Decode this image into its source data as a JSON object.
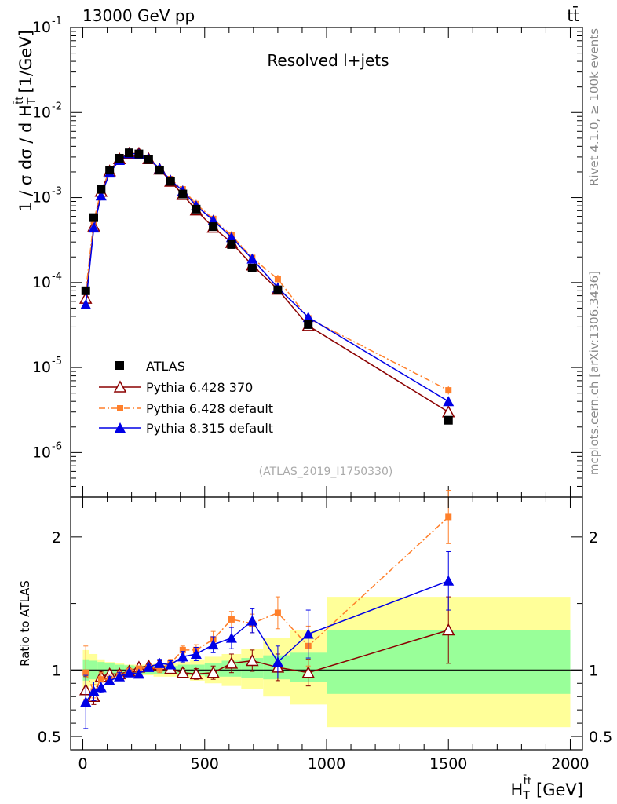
{
  "header": {
    "energy_label": "13000 GeV pp",
    "process_label": "tt̄"
  },
  "side_labels": {
    "rivet": "Rivet 4.1.0, ≥ 100k events",
    "mcplots": "mcplots.cern.ch [arXiv:1306.3436]"
  },
  "colors": {
    "atlas": "#000000",
    "py6_370": "#8b0000",
    "py6_default": "#ff7f2a",
    "py8": "#0000e6",
    "band_inner": "#99ff99",
    "band_outer": "#ffff99"
  },
  "chart_data": [
    {
      "type": "scatter",
      "title": "Resolved l+jets",
      "analysis_tag": "(ATLAS_2019_I1750330)",
      "ylabel": "1 / σ dσ / d H",
      "ylabel_sup": "t̄t",
      "ylabel_sub": "T",
      "ylabel_unit": "[1/GeV]",
      "yscale": "log",
      "ylim": [
        3e-07,
        0.1
      ],
      "xlim": [
        -50,
        2050
      ],
      "y_tick_labels": [
        "10",
        "10",
        "10",
        "10",
        "10",
        "10"
      ],
      "y_tick_exponents": [
        "-6",
        "-5",
        "-4",
        "-3",
        "-2",
        "-1"
      ],
      "y_tick_values": [
        1e-06,
        1e-05,
        0.0001,
        0.001,
        0.01,
        0.1
      ],
      "x": [
        12,
        45,
        75,
        110,
        150,
        190,
        230,
        270,
        315,
        360,
        410,
        465,
        535,
        610,
        695,
        800,
        925,
        1500
      ],
      "series": [
        {
          "name": "ATLAS",
          "key": "atlas",
          "marker": "square",
          "values": [
            8e-05,
            0.00058,
            0.00125,
            0.0021,
            0.0029,
            0.00335,
            0.00325,
            0.0028,
            0.0021,
            0.00155,
            0.0011,
            0.00073,
            0.000455,
            0.00028,
            0.000148,
            8.2e-05,
            3.2e-05,
            2.4e-06
          ]
        },
        {
          "name": "Pythia 6.428 370",
          "key": "py6_370",
          "marker": "triangle-open",
          "dash": "",
          "values": [
            6.5e-05,
            0.00046,
            0.00118,
            0.00205,
            0.00285,
            0.0033,
            0.0033,
            0.00285,
            0.00215,
            0.00155,
            0.00108,
            0.00071,
            0.000445,
            0.000295,
            0.00016,
            8.3e-05,
            3.1e-05,
            3e-06
          ]
        },
        {
          "name": "Pythia 6.428 default",
          "key": "py6_default",
          "marker": "square-small",
          "dash": "8,3,2,3",
          "values": [
            7.8e-05,
            0.00053,
            0.0012,
            0.002,
            0.0028,
            0.0033,
            0.0033,
            0.00285,
            0.00215,
            0.00165,
            0.00125,
            0.00084,
            0.00056,
            0.00036,
            0.000195,
            0.00011,
            3.8e-05,
            5.4e-06
          ]
        },
        {
          "name": "Pythia 8.315 default",
          "key": "py8",
          "marker": "triangle-filled",
          "dash": "",
          "values": [
            5.5e-05,
            0.00044,
            0.00105,
            0.00195,
            0.00275,
            0.0033,
            0.00325,
            0.00285,
            0.0022,
            0.0016,
            0.0012,
            0.0008,
            0.00054,
            0.00034,
            0.00019,
            8.7e-05,
            3.9e-05,
            4e-06
          ]
        }
      ]
    },
    {
      "type": "scatter",
      "ylabel": "Ratio to ATLAS",
      "xlabel": "H",
      "xlabel_sup": "t̄t",
      "xlabel_sub": "T",
      "xlabel_unit": "[GeV]",
      "ylim": [
        0.4,
        2.3
      ],
      "xlim": [
        -50,
        2050
      ],
      "x_tick_labels": [
        "0",
        "500",
        "1000",
        "1500",
        "2000"
      ],
      "x_tick_values": [
        0,
        500,
        1000,
        1500,
        2000
      ],
      "y_tick_labels": [
        "0.5",
        "1",
        "2"
      ],
      "y_tick_values": [
        0.5,
        1,
        2
      ],
      "bin_edges": [
        0,
        25,
        60,
        90,
        130,
        170,
        210,
        250,
        290,
        340,
        390,
        440,
        500,
        570,
        650,
        740,
        850,
        1000,
        2000
      ],
      "band_inner_low": [
        0.92,
        0.93,
        0.94,
        0.95,
        0.96,
        0.965,
        0.97,
        0.97,
        0.97,
        0.97,
        0.96,
        0.96,
        0.95,
        0.95,
        0.94,
        0.93,
        0.91,
        0.82
      ],
      "band_inner_high": [
        1.08,
        1.07,
        1.06,
        1.05,
        1.04,
        1.035,
        1.03,
        1.03,
        1.03,
        1.03,
        1.04,
        1.04,
        1.05,
        1.07,
        1.09,
        1.11,
        1.13,
        1.3
      ],
      "band_outer_low": [
        0.82,
        0.88,
        0.92,
        0.94,
        0.95,
        0.96,
        0.96,
        0.96,
        0.95,
        0.95,
        0.94,
        0.92,
        0.9,
        0.88,
        0.86,
        0.8,
        0.74,
        0.57
      ],
      "band_outer_high": [
        1.15,
        1.12,
        1.08,
        1.06,
        1.05,
        1.04,
        1.04,
        1.04,
        1.05,
        1.05,
        1.06,
        1.08,
        1.1,
        1.12,
        1.16,
        1.24,
        1.3,
        1.55
      ],
      "x": [
        12,
        45,
        75,
        110,
        150,
        190,
        230,
        270,
        315,
        360,
        410,
        465,
        535,
        610,
        695,
        800,
        925,
        1500
      ],
      "series": [
        {
          "name": "Pythia 6.428 370",
          "key": "py6_370",
          "marker": "triangle-open",
          "dash": "",
          "values": [
            0.85,
            0.8,
            0.95,
            0.97,
            0.97,
            0.99,
            1.02,
            1.03,
            1.04,
            1.01,
            0.98,
            0.97,
            0.98,
            1.05,
            1.07,
            1.02,
            0.98,
            1.3
          ],
          "errors": [
            0.1,
            0.06,
            0.04,
            0.03,
            0.03,
            0.02,
            0.02,
            0.02,
            0.03,
            0.03,
            0.03,
            0.04,
            0.05,
            0.07,
            0.08,
            0.1,
            0.1,
            0.25
          ]
        },
        {
          "name": "Pythia 6.428 default",
          "key": "py6_default",
          "marker": "square-small",
          "dash": "8,3,2,3",
          "values": [
            0.98,
            0.84,
            0.93,
            0.93,
            0.96,
            0.99,
            1.01,
            1.02,
            1.01,
            1.05,
            1.15,
            1.15,
            1.23,
            1.38,
            1.35,
            1.43,
            1.18,
            2.15
          ],
          "errors": [
            0.2,
            0.05,
            0.05,
            0.03,
            0.03,
            0.03,
            0.02,
            0.02,
            0.03,
            0.03,
            0.03,
            0.04,
            0.06,
            0.06,
            0.07,
            0.12,
            0.15,
            0.2
          ]
        },
        {
          "name": "Pythia 8.315 default",
          "key": "py8",
          "marker": "triangle-filled",
          "dash": "",
          "values": [
            0.76,
            0.84,
            0.87,
            0.92,
            0.95,
            0.98,
            0.97,
            1.02,
            1.05,
            1.04,
            1.1,
            1.12,
            1.19,
            1.24,
            1.37,
            1.06,
            1.27,
            1.67
          ],
          "errors": [
            0.2,
            0.07,
            0.04,
            0.03,
            0.03,
            0.02,
            0.02,
            0.02,
            0.03,
            0.03,
            0.04,
            0.05,
            0.06,
            0.08,
            0.09,
            0.12,
            0.18,
            0.22
          ]
        }
      ]
    }
  ]
}
